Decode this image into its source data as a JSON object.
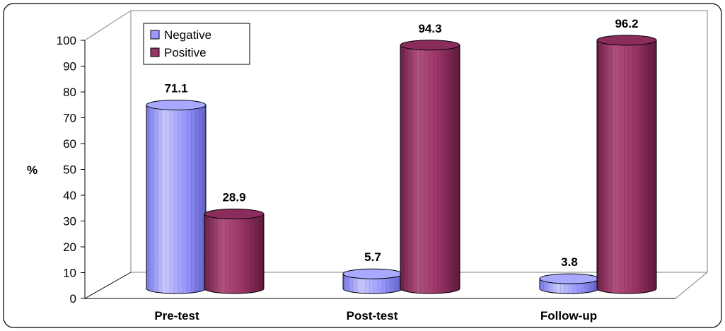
{
  "chart_data": {
    "type": "bar",
    "style": "3d-cylinder",
    "categories": [
      "Pre-test",
      "Post-test",
      "Follow-up"
    ],
    "series": [
      {
        "name": "Negative",
        "values": [
          71.1,
          5.7,
          3.8
        ],
        "color": "#9999FF"
      },
      {
        "name": "Positive",
        "values": [
          28.9,
          94.3,
          96.2
        ],
        "color": "#993366"
      }
    ],
    "data_labels": {
      "Negative": [
        "71.1",
        "5.7",
        "3.8"
      ],
      "Positive": [
        "28.9",
        "94.3",
        "96.2"
      ]
    },
    "ylabel": "%",
    "xlabel": "",
    "ylim": [
      0,
      100
    ],
    "yticks": [
      "0",
      "10",
      "20",
      "30",
      "40",
      "50",
      "60",
      "70",
      "80",
      "90",
      "100"
    ],
    "legend_position": "top-left",
    "grid": false
  }
}
